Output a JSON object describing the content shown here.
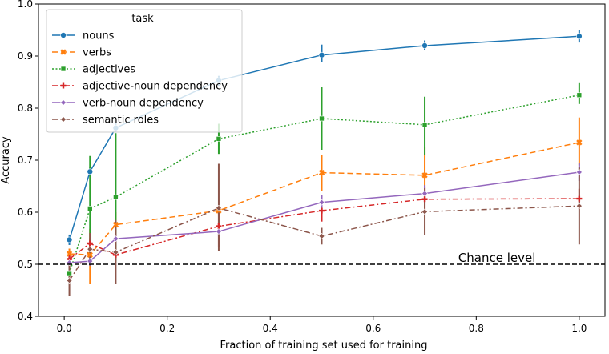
{
  "chart_data": {
    "type": "line",
    "xlabel": "Fraction of training set used for training",
    "ylabel": "Accuracy",
    "xlim": [
      -0.05,
      1.05
    ],
    "ylim": [
      0.4,
      1.0
    ],
    "x_ticks": [
      0.0,
      0.2,
      0.4,
      0.6,
      0.8,
      1.0
    ],
    "x_tick_labels": [
      "0.0",
      "0.2",
      "0.4",
      "0.6",
      "0.8",
      "1.0"
    ],
    "y_ticks": [
      0.4,
      0.5,
      0.6,
      0.7,
      0.8,
      0.9,
      1.0
    ],
    "y_tick_labels": [
      "0.4",
      "0.5",
      "0.6",
      "0.7",
      "0.8",
      "0.9",
      "1.0"
    ],
    "grid": false,
    "legend": {
      "title": "task",
      "placement": "top-left"
    },
    "x": [
      0.01,
      0.05,
      0.1,
      0.3,
      0.5,
      0.7,
      1.0
    ],
    "series": [
      {
        "name": "nouns",
        "color": "#1f77b4",
        "dash": "solid",
        "marker": "circle",
        "values": [
          0.547,
          0.678,
          0.762,
          0.853,
          0.902,
          0.92,
          0.938
        ],
        "err_low": [
          0.537,
          0.672,
          0.753,
          0.843,
          0.889,
          0.912,
          0.926
        ],
        "err_high": [
          0.557,
          0.686,
          0.772,
          0.862,
          0.922,
          0.93,
          0.95
        ]
      },
      {
        "name": "verbs",
        "color": "#ff7f0e",
        "dash": "dashed",
        "marker": "x",
        "values": [
          0.52,
          0.518,
          0.576,
          0.603,
          0.676,
          0.671,
          0.734
        ],
        "err_low": [
          0.505,
          0.463,
          0.548,
          0.595,
          0.64,
          0.62,
          0.69
        ],
        "err_high": [
          0.53,
          0.568,
          0.6,
          0.612,
          0.71,
          0.725,
          0.782
        ]
      },
      {
        "name": "adjectives",
        "color": "#2ca02c",
        "dash": "dotted",
        "marker": "square",
        "values": [
          0.483,
          0.607,
          0.629,
          0.741,
          0.78,
          0.768,
          0.825
        ],
        "err_low": [
          0.475,
          0.508,
          0.505,
          0.712,
          0.72,
          0.71,
          0.808
        ],
        "err_high": [
          0.495,
          0.708,
          0.752,
          0.77,
          0.84,
          0.822,
          0.848
        ]
      },
      {
        "name": "adjective-noun dependency",
        "color": "#d62728",
        "dash": "dashdot",
        "marker": "plus",
        "values": [
          0.51,
          0.54,
          0.518,
          0.573,
          0.603,
          0.625,
          0.626
        ],
        "err_low": [
          0.495,
          0.528,
          0.508,
          0.533,
          0.582,
          0.6,
          0.606
        ],
        "err_high": [
          0.522,
          0.55,
          0.53,
          0.605,
          0.625,
          0.648,
          0.645
        ]
      },
      {
        "name": "verb-noun dependency",
        "color": "#9467bd",
        "dash": "solid",
        "marker": "diamond",
        "values": [
          0.503,
          0.506,
          0.549,
          0.563,
          0.619,
          0.636,
          0.677
        ],
        "err_low": [
          0.495,
          0.497,
          0.54,
          0.553,
          0.605,
          0.62,
          0.66
        ],
        "err_high": [
          0.512,
          0.515,
          0.558,
          0.573,
          0.633,
          0.652,
          0.694
        ]
      },
      {
        "name": "semantic roles",
        "color": "#8c564b",
        "dash": "dashdot",
        "marker": "diamond",
        "values": [
          0.469,
          0.529,
          0.523,
          0.608,
          0.554,
          0.601,
          0.612
        ],
        "err_low": [
          0.44,
          0.498,
          0.462,
          0.525,
          0.538,
          0.556,
          0.538
        ],
        "err_high": [
          0.5,
          0.56,
          0.585,
          0.693,
          0.57,
          0.646,
          0.686
        ]
      }
    ],
    "reference_line": {
      "y": 0.5,
      "label": "Chance level",
      "color": "#000000",
      "dash": "dashed"
    }
  }
}
